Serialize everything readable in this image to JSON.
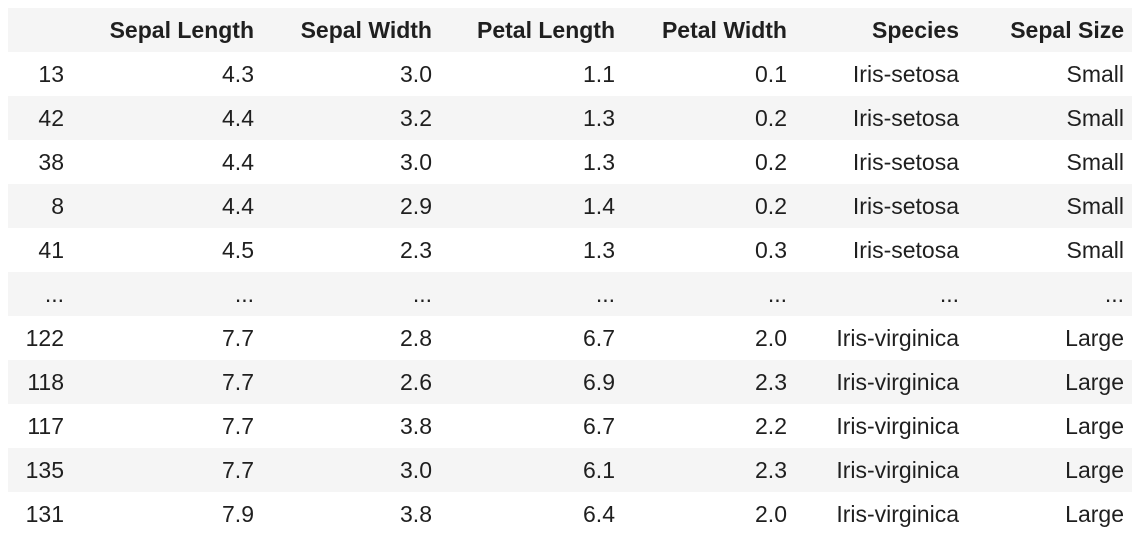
{
  "table": {
    "columns": [
      "",
      "Sepal Length",
      "Sepal Width",
      "Petal Length",
      "Petal Width",
      "Species",
      "Sepal Size"
    ],
    "rows": [
      [
        "13",
        "4.3",
        "3.0",
        "1.1",
        "0.1",
        "Iris-setosa",
        "Small"
      ],
      [
        "42",
        "4.4",
        "3.2",
        "1.3",
        "0.2",
        "Iris-setosa",
        "Small"
      ],
      [
        "38",
        "4.4",
        "3.0",
        "1.3",
        "0.2",
        "Iris-setosa",
        "Small"
      ],
      [
        "8",
        "4.4",
        "2.9",
        "1.4",
        "0.2",
        "Iris-setosa",
        "Small"
      ],
      [
        "41",
        "4.5",
        "2.3",
        "1.3",
        "0.3",
        "Iris-setosa",
        "Small"
      ],
      [
        "...",
        "...",
        "...",
        "...",
        "...",
        "...",
        "..."
      ],
      [
        "122",
        "7.7",
        "2.8",
        "6.7",
        "2.0",
        "Iris-virginica",
        "Large"
      ],
      [
        "118",
        "7.7",
        "2.6",
        "6.9",
        "2.3",
        "Iris-virginica",
        "Large"
      ],
      [
        "117",
        "7.7",
        "3.8",
        "6.7",
        "2.2",
        "Iris-virginica",
        "Large"
      ],
      [
        "135",
        "7.7",
        "3.0",
        "6.1",
        "2.3",
        "Iris-virginica",
        "Large"
      ],
      [
        "131",
        "7.9",
        "3.8",
        "6.4",
        "2.0",
        "Iris-virginica",
        "Large"
      ]
    ]
  }
}
